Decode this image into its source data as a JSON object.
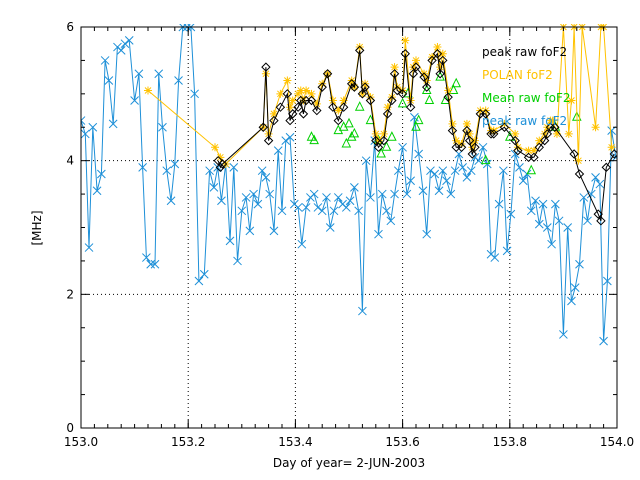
{
  "chart_data": {
    "type": "line",
    "title": "",
    "xlabel": "Day of year= 2-JUN-2003",
    "ylabel": "[MHz]",
    "xlim": [
      153.0,
      154.0
    ],
    "ylim": [
      0,
      6
    ],
    "x_ticks": [
      {
        "value": 153.0,
        "label": "153.0"
      },
      {
        "value": 153.2,
        "label": "153.2"
      },
      {
        "value": 153.4,
        "label": "153.4"
      },
      {
        "value": 153.6,
        "label": "153.6"
      },
      {
        "value": 153.8,
        "label": "153.8"
      },
      {
        "value": 154.0,
        "label": "154.0"
      }
    ],
    "y_ticks": [
      {
        "value": 0,
        "label": "0"
      },
      {
        "value": 2,
        "label": "2"
      },
      {
        "value": 4,
        "label": "4"
      },
      {
        "value": 6,
        "label": "6"
      }
    ],
    "series": [
      {
        "name": "peak raw foF2",
        "color": "#000000",
        "marker": "diamond",
        "line": true,
        "x": [
          153.256,
          153.26,
          153.264,
          153.34,
          153.345,
          153.35,
          153.36,
          153.372,
          153.385,
          153.39,
          153.395,
          153.405,
          153.41,
          153.415,
          153.42,
          153.43,
          153.44,
          153.45,
          153.46,
          153.47,
          153.48,
          153.49,
          153.505,
          153.51,
          153.52,
          153.525,
          153.53,
          153.54,
          153.55,
          153.555,
          153.565,
          153.572,
          153.58,
          153.585,
          153.59,
          153.6,
          153.605,
          153.615,
          153.62,
          153.625,
          153.64,
          153.645,
          153.655,
          153.665,
          153.67,
          153.675,
          153.685,
          153.693,
          153.7,
          153.71,
          153.72,
          153.725,
          153.73,
          153.735,
          153.745,
          153.755,
          153.765,
          153.77,
          153.79,
          153.81,
          153.815,
          153.835,
          153.845,
          153.855,
          153.865,
          153.87,
          153.876,
          153.884,
          153.92,
          153.93,
          153.965,
          153.97,
          153.98,
          153.995
        ],
        "y": [
          4.0,
          3.9,
          3.95,
          4.5,
          5.4,
          4.3,
          4.6,
          4.8,
          5.0,
          4.6,
          4.7,
          4.8,
          4.9,
          4.7,
          4.9,
          4.9,
          4.75,
          5.1,
          5.3,
          4.8,
          4.6,
          4.8,
          5.15,
          5.1,
          5.65,
          5.0,
          5.1,
          4.9,
          4.3,
          4.2,
          4.3,
          4.7,
          4.9,
          5.3,
          5.05,
          5.0,
          5.6,
          4.8,
          5.3,
          5.4,
          5.25,
          5.1,
          5.5,
          5.6,
          5.3,
          5.5,
          4.95,
          4.45,
          4.2,
          4.2,
          4.45,
          4.3,
          4.1,
          4.2,
          4.7,
          4.7,
          4.4,
          4.4,
          4.5,
          4.3,
          4.15,
          4.05,
          4.05,
          4.2,
          4.3,
          4.4,
          4.5,
          4.5,
          4.1,
          3.8,
          3.2,
          3.1,
          3.9,
          4.1
        ]
      },
      {
        "name": "POLAN foF2",
        "color": "#FFC200",
        "marker": "asterisk",
        "line": true,
        "x": [
          153.125,
          153.25,
          153.26,
          153.27,
          153.34,
          153.345,
          153.35,
          153.36,
          153.372,
          153.385,
          153.39,
          153.395,
          153.405,
          153.41,
          153.415,
          153.42,
          153.43,
          153.44,
          153.45,
          153.46,
          153.47,
          153.48,
          153.49,
          153.505,
          153.51,
          153.52,
          153.525,
          153.53,
          153.54,
          153.55,
          153.555,
          153.565,
          153.572,
          153.58,
          153.585,
          153.59,
          153.6,
          153.605,
          153.615,
          153.62,
          153.625,
          153.64,
          153.645,
          153.655,
          153.665,
          153.67,
          153.675,
          153.685,
          153.693,
          153.7,
          153.71,
          153.72,
          153.725,
          153.73,
          153.735,
          153.745,
          153.755,
          153.765,
          153.77,
          153.79,
          153.81,
          153.815,
          153.835,
          153.845,
          153.855,
          153.865,
          153.87,
          153.876,
          153.88,
          153.888,
          153.9,
          153.91,
          153.915,
          153.92,
          153.928,
          153.935,
          153.96,
          153.97,
          153.975,
          153.99
        ],
        "y": [
          5.05,
          4.2,
          4.05,
          3.95,
          4.5,
          5.3,
          4.4,
          4.7,
          5.0,
          5.2,
          4.8,
          4.9,
          5.0,
          5.05,
          4.9,
          5.05,
          5.0,
          4.85,
          5.15,
          5.3,
          4.9,
          4.75,
          4.9,
          5.2,
          5.1,
          5.7,
          5.0,
          5.15,
          4.95,
          4.4,
          4.3,
          4.4,
          4.8,
          4.95,
          5.4,
          5.1,
          5.05,
          5.8,
          4.9,
          5.4,
          5.5,
          5.3,
          5.2,
          5.55,
          5.7,
          5.4,
          5.6,
          5.05,
          4.55,
          4.3,
          4.25,
          4.55,
          4.4,
          4.2,
          4.3,
          4.75,
          4.75,
          4.45,
          4.45,
          4.55,
          4.4,
          4.2,
          4.15,
          4.15,
          4.3,
          4.4,
          4.5,
          4.6,
          4.6,
          4.4,
          6.0,
          4.4,
          4.9,
          6.0,
          4.0,
          6.0,
          4.5,
          6.0,
          6.0,
          4.2
        ]
      },
      {
        "name": "Mean raw foF2",
        "color": "#00D000",
        "marker": "triangle",
        "line": false,
        "x": [
          153.43,
          153.435,
          153.48,
          153.49,
          153.495,
          153.5,
          153.505,
          153.51,
          153.52,
          153.54,
          153.555,
          153.56,
          153.57,
          153.58,
          153.6,
          153.61,
          153.625,
          153.63,
          153.645,
          153.65,
          153.67,
          153.68,
          153.695,
          153.7,
          153.755,
          153.8,
          153.84,
          153.885,
          153.925
        ],
        "y": [
          4.35,
          4.3,
          4.45,
          4.5,
          4.25,
          4.55,
          4.35,
          4.4,
          4.8,
          4.6,
          4.3,
          4.1,
          4.2,
          4.35,
          4.85,
          5.0,
          4.5,
          4.6,
          5.05,
          4.9,
          5.25,
          4.9,
          5.05,
          5.15,
          4.0,
          4.35,
          3.85,
          4.5,
          4.65
        ]
      },
      {
        "name": "peak raw foF2",
        "color": "#1E90D8",
        "marker": "x",
        "line": true,
        "x": [
          153.0,
          153.008,
          153.015,
          153.022,
          153.03,
          153.038,
          153.045,
          153.052,
          153.06,
          153.068,
          153.075,
          153.082,
          153.09,
          153.1,
          153.108,
          153.115,
          153.122,
          153.13,
          153.138,
          153.145,
          153.152,
          153.16,
          153.168,
          153.175,
          153.182,
          153.19,
          153.198,
          153.205,
          153.212,
          153.22,
          153.23,
          153.24,
          153.248,
          153.255,
          153.262,
          153.27,
          153.278,
          153.285,
          153.292,
          153.3,
          153.308,
          153.315,
          153.322,
          153.33,
          153.338,
          153.345,
          153.352,
          153.36,
          153.368,
          153.375,
          153.382,
          153.39,
          153.398,
          153.405,
          153.412,
          153.42,
          153.428,
          153.435,
          153.442,
          153.45,
          153.458,
          153.465,
          153.472,
          153.48,
          153.488,
          153.495,
          153.502,
          153.51,
          153.518,
          153.525,
          153.532,
          153.54,
          153.548,
          153.555,
          153.562,
          153.57,
          153.578,
          153.585,
          153.592,
          153.6,
          153.608,
          153.615,
          153.622,
          153.63,
          153.638,
          153.645,
          153.652,
          153.66,
          153.668,
          153.675,
          153.682,
          153.69,
          153.698,
          153.705,
          153.712,
          153.72,
          153.728,
          153.735,
          153.742,
          153.75,
          153.758,
          153.765,
          153.772,
          153.78,
          153.788,
          153.795,
          153.802,
          153.81,
          153.818,
          153.825,
          153.832,
          153.84,
          153.848,
          153.855,
          153.862,
          153.87,
          153.878,
          153.885,
          153.892,
          153.9,
          153.908,
          153.915,
          153.922,
          153.93,
          153.938,
          153.945,
          153.952,
          153.96,
          153.968,
          153.975,
          153.982,
          153.99,
          153.998
        ],
        "y": [
          4.6,
          4.4,
          2.7,
          4.5,
          3.55,
          3.8,
          5.5,
          5.2,
          4.55,
          5.7,
          5.65,
          5.75,
          5.8,
          4.9,
          5.3,
          3.9,
          2.55,
          2.45,
          2.45,
          5.3,
          4.5,
          3.85,
          3.4,
          3.95,
          5.2,
          6.0,
          6.0,
          6.0,
          5.0,
          2.2,
          2.3,
          3.85,
          3.6,
          3.9,
          3.4,
          3.95,
          2.8,
          3.9,
          2.5,
          3.25,
          3.45,
          2.95,
          3.5,
          3.35,
          3.85,
          3.75,
          3.5,
          2.95,
          4.15,
          3.25,
          4.3,
          4.35,
          3.35,
          3.3,
          2.75,
          3.3,
          3.45,
          3.5,
          3.3,
          3.25,
          3.45,
          3.0,
          3.25,
          3.45,
          3.35,
          3.3,
          3.4,
          3.6,
          3.25,
          1.75,
          4.0,
          3.45,
          4.3,
          2.9,
          3.5,
          3.25,
          3.1,
          3.5,
          3.85,
          4.2,
          3.5,
          3.7,
          4.65,
          4.1,
          3.55,
          2.9,
          3.85,
          3.8,
          3.55,
          3.85,
          3.7,
          3.5,
          3.85,
          4.1,
          3.9,
          3.75,
          3.85,
          4.05,
          4.0,
          4.2,
          3.95,
          2.6,
          2.55,
          3.35,
          3.85,
          2.65,
          3.2,
          4.1,
          3.9,
          3.7,
          3.8,
          3.25,
          3.4,
          3.05,
          3.35,
          3.0,
          2.75,
          3.35,
          3.1,
          1.4,
          3.0,
          1.9,
          2.1,
          2.45,
          3.45,
          3.1,
          3.5,
          3.75,
          3.65,
          1.3,
          2.2,
          4.45,
          4.05
        ]
      }
    ],
    "legend": {
      "placement": "top-right",
      "items": [
        {
          "label": "peak raw foF2",
          "color": "#000000"
        },
        {
          "label": "POLAN foF2",
          "color": "#FFC200"
        },
        {
          "label": "Mean raw foF2",
          "color": "#00D000"
        },
        {
          "label": "peak raw foF2",
          "color": "#1E90D8"
        }
      ]
    }
  }
}
